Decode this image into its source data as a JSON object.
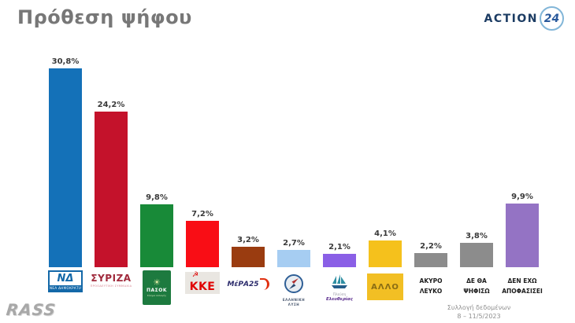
{
  "header": {
    "title": "Πρόθεση ψήφου",
    "channel_logo": {
      "text": "ACTION",
      "number": "24"
    }
  },
  "chart_data": {
    "type": "bar",
    "title": "Πρόθεση ψήφου",
    "xlabel": "",
    "ylabel": "",
    "ylim": [
      0,
      33
    ],
    "grid": false,
    "legend": "none",
    "categories": [
      "ΝΔ",
      "ΣΥΡΙΖΑ",
      "ΠΑΣΟΚ",
      "ΚΚΕ",
      "ΜέΡΑ25",
      "ΕΛΛΗΝΙΚΗ ΛΥΣΗ",
      "Πλεύση Ελευθερίας",
      "ΑΛΛΟ",
      "ΑΚΥΡΟ ΛΕΥΚΟ",
      "ΔΕ ΘΑ ΨΗΦΙΣΩ",
      "ΔΕΝ ΕΧΩ ΑΠΟΦΑΣΙΣΕΙ"
    ],
    "values": [
      30.8,
      24.2,
      9.8,
      7.2,
      3.2,
      2.7,
      2.1,
      4.1,
      2.2,
      3.8,
      9.9
    ],
    "value_labels": [
      "30,8%",
      "24,2%",
      "9,8%",
      "7,2%",
      "3,2%",
      "2,7%",
      "2,1%",
      "4,1%",
      "2,2%",
      "3,8%",
      "9,9%"
    ],
    "bar_colors": [
      "#1471b8",
      "#c4122b",
      "#188a38",
      "#f90d15",
      "#9a3c10",
      "#a6cdf2",
      "#8a5fe6",
      "#f5c11c",
      "#8c8c8c",
      "#8c8c8c",
      "#9473c4"
    ]
  },
  "parties": [
    {
      "id": "nd",
      "logo_type": "nd",
      "main": "ΝΔ",
      "sub": "ΝΕΑ ΔΗΜΟΚΡΑΤΙΑ"
    },
    {
      "id": "syriza",
      "logo_type": "syriza",
      "main": "ΣΥΡΙΖΑ",
      "sub": "ΠΡΟΟΔΕΥΤΙΚΗ ΣΥΜΜΑΧΙΑ"
    },
    {
      "id": "pasok",
      "logo_type": "pasok",
      "main": "ΠΑΣΟΚ",
      "sub": "Κίνημα Αλλαγής",
      "icon": "sun-icon"
    },
    {
      "id": "kke",
      "logo_type": "kke",
      "main": "ΚΚΕ",
      "icon": "hammer-sickle-icon"
    },
    {
      "id": "mera25",
      "logo_type": "mera25",
      "main": "ΜέΡΑ25",
      "icon": "swoosh-icon"
    },
    {
      "id": "elliniki-lysi",
      "logo_type": "compass",
      "line1": "ΕΛΛΗΝΙΚΗ",
      "line2": "ΛΥΣΗ",
      "icon": "compass-icon"
    },
    {
      "id": "plefsi-eleftherias",
      "logo_type": "boat",
      "main": "Πλεύση",
      "sub": "Ελευθερίας",
      "icon": "sailboat-icon"
    },
    {
      "id": "allo",
      "logo_type": "box",
      "main": "ΑΛΛΟ"
    },
    {
      "id": "akyro-leyko",
      "logo_type": "text",
      "line1": "ΑΚΥΡΟ",
      "line2": "ΛΕΥΚΟ"
    },
    {
      "id": "de-tha-psifiso",
      "logo_type": "text",
      "line1": "ΔΕ ΘΑ",
      "line2": "ΨΗΦΙΣΩ"
    },
    {
      "id": "den-exo-apofasisei",
      "logo_type": "text",
      "line1": "ΔΕΝ ΕΧΩ",
      "line2": "ΑΠΟΦΑΣΙΣΕΙ"
    }
  ],
  "footer": {
    "agency": "RASS",
    "note_line1": "Συλλογή δεδομένων",
    "note_line2": "8 – 11/5/2023"
  }
}
